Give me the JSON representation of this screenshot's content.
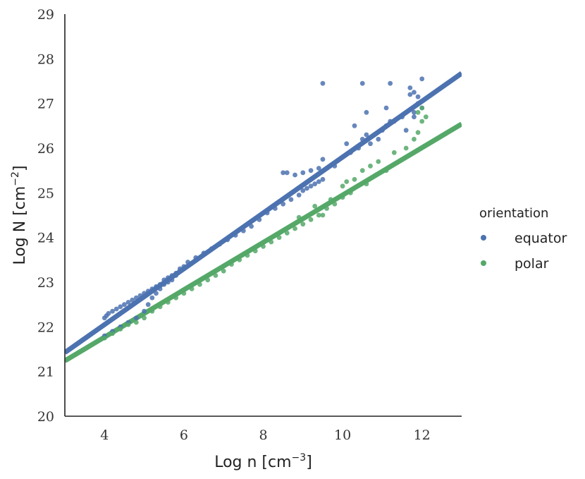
{
  "chart_data": {
    "type": "scatter",
    "xlabel": "Log n [cm",
    "xlabel_sup": "−3",
    "xlabel_suffix": "]",
    "ylabel": "Log N [cm",
    "ylabel_sup": "−2",
    "ylabel_suffix": "]",
    "xlim": [
      3,
      13
    ],
    "ylim": [
      20,
      29
    ],
    "xticks": [
      4,
      6,
      8,
      10,
      12
    ],
    "yticks": [
      20,
      21,
      22,
      23,
      24,
      25,
      26,
      27,
      28,
      29
    ],
    "grid": false,
    "legend": {
      "title": "orientation",
      "placement": "right"
    },
    "series": [
      {
        "name": "equator",
        "color": "#4c72b0",
        "regression": {
          "slope": 0.625,
          "intercept": 19.55
        },
        "points": [
          [
            4.0,
            22.2
          ],
          [
            4.05,
            22.25
          ],
          [
            4.1,
            22.3
          ],
          [
            4.2,
            22.35
          ],
          [
            4.3,
            22.4
          ],
          [
            4.4,
            22.45
          ],
          [
            4.5,
            22.5
          ],
          [
            4.6,
            22.55
          ],
          [
            4.7,
            22.6
          ],
          [
            4.8,
            22.65
          ],
          [
            4.9,
            22.7
          ],
          [
            5.0,
            22.75
          ],
          [
            5.1,
            22.8
          ],
          [
            5.2,
            22.85
          ],
          [
            5.3,
            22.9
          ],
          [
            5.4,
            22.95
          ],
          [
            5.5,
            23.05
          ],
          [
            5.6,
            23.1
          ],
          [
            5.7,
            23.15
          ],
          [
            5.8,
            23.2
          ],
          [
            5.9,
            23.3
          ],
          [
            6.0,
            23.35
          ],
          [
            6.1,
            23.45
          ],
          [
            6.3,
            23.55
          ],
          [
            6.5,
            23.65
          ],
          [
            6.7,
            23.75
          ],
          [
            6.9,
            23.85
          ],
          [
            7.1,
            23.95
          ],
          [
            7.3,
            24.05
          ],
          [
            7.5,
            24.15
          ],
          [
            7.7,
            24.25
          ],
          [
            7.9,
            24.4
          ],
          [
            8.1,
            24.55
          ],
          [
            8.3,
            24.65
          ],
          [
            8.5,
            24.75
          ],
          [
            8.7,
            24.85
          ],
          [
            8.9,
            24.95
          ],
          [
            9.0,
            25.05
          ],
          [
            9.1,
            25.1
          ],
          [
            9.2,
            25.15
          ],
          [
            9.3,
            25.2
          ],
          [
            9.4,
            25.25
          ],
          [
            9.5,
            25.3
          ],
          [
            4.0,
            21.8
          ],
          [
            4.2,
            21.9
          ],
          [
            4.4,
            22.0
          ],
          [
            4.6,
            22.1
          ],
          [
            4.8,
            22.2
          ],
          [
            5.0,
            22.35
          ],
          [
            5.1,
            22.5
          ],
          [
            5.2,
            22.65
          ],
          [
            5.3,
            22.75
          ],
          [
            5.4,
            22.85
          ],
          [
            5.5,
            22.95
          ],
          [
            5.6,
            23.0
          ],
          [
            5.7,
            23.05
          ],
          [
            5.8,
            23.15
          ],
          [
            8.5,
            25.45
          ],
          [
            8.6,
            25.45
          ],
          [
            8.8,
            25.4
          ],
          [
            9.0,
            25.45
          ],
          [
            9.2,
            25.5
          ],
          [
            9.4,
            25.55
          ],
          [
            9.5,
            25.75
          ],
          [
            9.8,
            25.6
          ],
          [
            10.0,
            25.8
          ],
          [
            10.1,
            26.1
          ],
          [
            10.2,
            25.9
          ],
          [
            10.3,
            26.5
          ],
          [
            10.4,
            26.0
          ],
          [
            10.5,
            26.2
          ],
          [
            10.6,
            26.3
          ],
          [
            10.6,
            26.8
          ],
          [
            10.8,
            26.3
          ],
          [
            11.0,
            26.4
          ],
          [
            11.1,
            26.5
          ],
          [
            11.2,
            26.6
          ],
          [
            11.3,
            26.6
          ],
          [
            11.5,
            26.7
          ],
          [
            11.6,
            26.4
          ],
          [
            11.8,
            26.7
          ],
          [
            11.8,
            26.8
          ],
          [
            11.9,
            27.0
          ],
          [
            12.0,
            26.9
          ],
          [
            12.0,
            27.05
          ],
          [
            11.8,
            27.25
          ],
          [
            11.7,
            27.2
          ],
          [
            11.9,
            27.15
          ],
          [
            9.5,
            27.45
          ],
          [
            10.5,
            27.45
          ],
          [
            11.2,
            27.45
          ],
          [
            12.0,
            27.55
          ],
          [
            11.7,
            27.35
          ],
          [
            11.1,
            26.9
          ],
          [
            10.9,
            26.2
          ],
          [
            10.7,
            26.1
          ]
        ]
      },
      {
        "name": "polar",
        "color": "#55a868",
        "regression": {
          "slope": 0.53,
          "intercept": 19.65
        },
        "points": [
          [
            4.0,
            21.75
          ],
          [
            4.2,
            21.85
          ],
          [
            4.4,
            21.95
          ],
          [
            4.6,
            22.05
          ],
          [
            4.8,
            22.1
          ],
          [
            5.0,
            22.2
          ],
          [
            5.2,
            22.35
          ],
          [
            5.4,
            22.45
          ],
          [
            5.6,
            22.55
          ],
          [
            5.8,
            22.65
          ],
          [
            6.0,
            22.75
          ],
          [
            6.2,
            22.85
          ],
          [
            6.4,
            22.95
          ],
          [
            6.6,
            23.05
          ],
          [
            6.8,
            23.15
          ],
          [
            7.0,
            23.25
          ],
          [
            7.2,
            23.4
          ],
          [
            7.4,
            23.5
          ],
          [
            7.6,
            23.6
          ],
          [
            7.8,
            23.7
          ],
          [
            8.0,
            23.8
          ],
          [
            8.2,
            23.9
          ],
          [
            8.4,
            24.0
          ],
          [
            8.6,
            24.1
          ],
          [
            8.8,
            24.2
          ],
          [
            9.0,
            24.3
          ],
          [
            9.2,
            24.4
          ],
          [
            9.4,
            24.5
          ],
          [
            9.6,
            24.65
          ],
          [
            9.8,
            24.75
          ],
          [
            10.0,
            24.9
          ],
          [
            10.2,
            25.0
          ],
          [
            8.9,
            24.45
          ],
          [
            9.3,
            24.7
          ],
          [
            9.5,
            24.5
          ],
          [
            9.7,
            24.85
          ],
          [
            10.0,
            25.15
          ],
          [
            10.1,
            25.25
          ],
          [
            10.3,
            25.3
          ],
          [
            10.5,
            25.5
          ],
          [
            10.6,
            25.2
          ],
          [
            10.7,
            25.6
          ],
          [
            10.9,
            25.7
          ],
          [
            11.1,
            25.5
          ],
          [
            11.3,
            25.9
          ],
          [
            11.6,
            26.0
          ],
          [
            11.8,
            26.2
          ],
          [
            11.9,
            26.35
          ],
          [
            12.0,
            26.6
          ],
          [
            12.0,
            26.9
          ],
          [
            12.1,
            26.7
          ],
          [
            11.9,
            26.8
          ]
        ]
      }
    ]
  }
}
